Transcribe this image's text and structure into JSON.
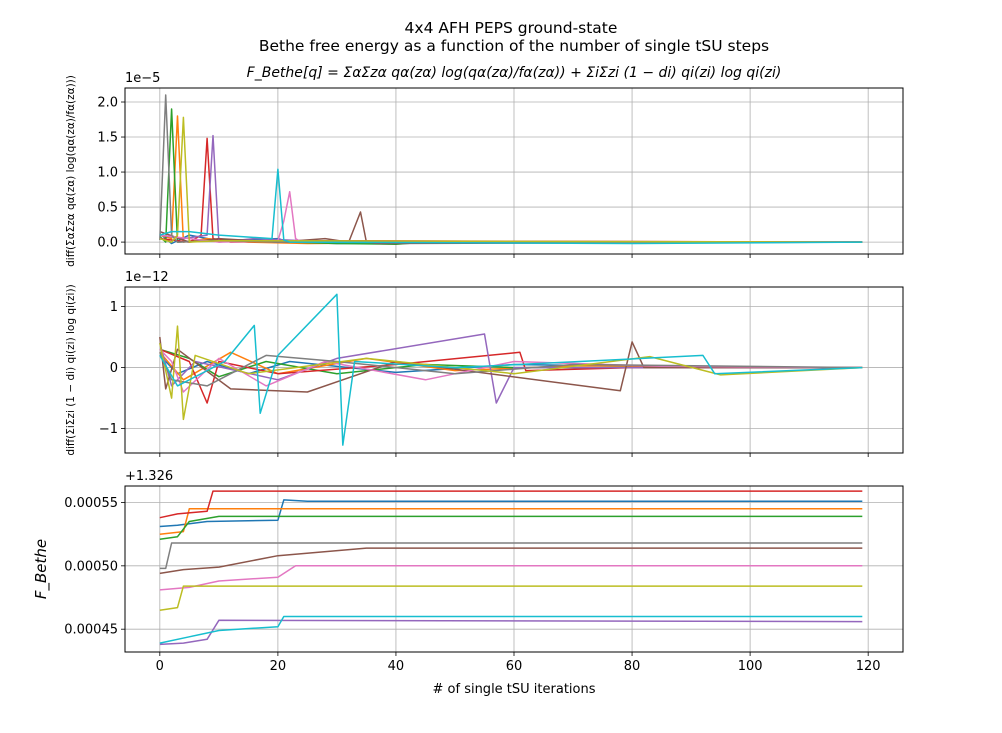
{
  "title_lines": [
    "4x4 AFH PEPS ground-state",
    "Bethe free energy as a function of the number of single tSU steps"
  ],
  "formula": "F_Bethe[q] = ΣαΣzα qα(zα) log(qα(zα)/fα(zα)) + ΣiΣzi (1 − di) qi(zi) log qi(zi)",
  "xlabel": "# of single tSU iterations",
  "palette": [
    "#1f77b4",
    "#ff7f0e",
    "#2ca02c",
    "#d62728",
    "#9467bd",
    "#8c564b",
    "#e377c2",
    "#7f7f7f",
    "#bcbd22",
    "#17becf"
  ],
  "chart_data": [
    {
      "type": "line",
      "ylabel": "diff(ΣαΣzα qα(zα) log(qα(zα)/fα(zα)))",
      "offset_label": "1e−5",
      "xlim": [
        -5.9,
        125.9
      ],
      "ylim": [
        -0.17,
        2.2
      ],
      "xticks": [
        0,
        20,
        40,
        60,
        80,
        100,
        120
      ],
      "yticks": [
        0.0,
        0.5,
        1.0,
        1.5,
        2.0
      ],
      "ytick_labels": [
        "0.0",
        "0.5",
        "1.0",
        "1.5",
        "2.0"
      ],
      "show_xtick_labels": false,
      "grid": true,
      "series": [
        {
          "points": [
            [
              0,
              0.12
            ],
            [
              2,
              -0.02
            ],
            [
              5,
              0.1
            ],
            [
              10,
              0.02
            ],
            [
              20,
              0.05
            ],
            [
              22,
              0.0
            ],
            [
              30,
              -0.02
            ],
            [
              50,
              0.0
            ],
            [
              119,
              0.0
            ]
          ]
        },
        {
          "points": [
            [
              0,
              0.1
            ],
            [
              2,
              0.05
            ],
            [
              3,
              1.8
            ],
            [
              4,
              0.0
            ],
            [
              8,
              0.05
            ],
            [
              15,
              0.0
            ],
            [
              25,
              -0.02
            ],
            [
              60,
              0.0
            ],
            [
              119,
              0.0
            ]
          ]
        },
        {
          "points": [
            [
              0,
              0.08
            ],
            [
              1,
              0.0
            ],
            [
              2,
              1.9
            ],
            [
              3,
              0.0
            ],
            [
              10,
              0.03
            ],
            [
              30,
              -0.02
            ],
            [
              40,
              -0.03
            ],
            [
              45,
              0.0
            ],
            [
              119,
              0.0
            ]
          ]
        },
        {
          "points": [
            [
              0,
              0.05
            ],
            [
              5,
              0.0
            ],
            [
              7,
              0.1
            ],
            [
              8,
              1.48
            ],
            [
              9,
              0.05
            ],
            [
              12,
              0.0
            ],
            [
              25,
              0.02
            ],
            [
              119,
              0.0
            ]
          ]
        },
        {
          "points": [
            [
              0,
              0.1
            ],
            [
              4,
              0.05
            ],
            [
              8,
              0.1
            ],
            [
              9,
              1.52
            ],
            [
              10,
              0.0
            ],
            [
              16,
              0.05
            ],
            [
              30,
              0.0
            ],
            [
              119,
              0.0
            ]
          ]
        },
        {
          "points": [
            [
              0,
              0.15
            ],
            [
              5,
              0.0
            ],
            [
              10,
              0.05
            ],
            [
              20,
              0.0
            ],
            [
              28,
              0.05
            ],
            [
              32,
              0.0
            ],
            [
              34,
              0.43
            ],
            [
              35,
              0.0
            ],
            [
              37,
              -0.02
            ],
            [
              119,
              0.0
            ]
          ]
        },
        {
          "points": [
            [
              0,
              0.1
            ],
            [
              10,
              0.0
            ],
            [
              20,
              0.02
            ],
            [
              21,
              0.3
            ],
            [
              22,
              0.72
            ],
            [
              23,
              0.05
            ],
            [
              24,
              0.0
            ],
            [
              40,
              0.0
            ],
            [
              119,
              0.0
            ]
          ]
        },
        {
          "points": [
            [
              0,
              0.03
            ],
            [
              1,
              2.1
            ],
            [
              2,
              0.1
            ],
            [
              3,
              0.0
            ],
            [
              10,
              0.02
            ],
            [
              20,
              0.0
            ],
            [
              119,
              0.0
            ]
          ]
        },
        {
          "points": [
            [
              0,
              0.05
            ],
            [
              2,
              0.0
            ],
            [
              3,
              0.1
            ],
            [
              4,
              1.78
            ],
            [
              5,
              0.0
            ],
            [
              10,
              0.02
            ],
            [
              119,
              0.0
            ]
          ]
        },
        {
          "points": [
            [
              0,
              0.1
            ],
            [
              2,
              0.15
            ],
            [
              5,
              0.15
            ],
            [
              10,
              0.1
            ],
            [
              19,
              0.05
            ],
            [
              20,
              1.04
            ],
            [
              21,
              0.03
            ],
            [
              22,
              0.0
            ],
            [
              80,
              -0.02
            ],
            [
              119,
              0.0
            ]
          ]
        }
      ]
    },
    {
      "type": "line",
      "ylabel": "diff(ΣiΣzi (1 − di) qi(zi) log qi(zi))",
      "offset_label": "1e−12",
      "xlim": [
        -5.9,
        125.9
      ],
      "ylim": [
        -1.4,
        1.32
      ],
      "xticks": [
        0,
        20,
        40,
        60,
        80,
        100,
        120
      ],
      "yticks": [
        -1,
        0,
        1
      ],
      "ytick_labels": [
        "−1",
        "0",
        "1"
      ],
      "show_xtick_labels": false,
      "grid": true,
      "series": [
        {
          "points": [
            [
              0,
              0.2
            ],
            [
              3,
              -0.1
            ],
            [
              8,
              0.1
            ],
            [
              15,
              -0.1
            ],
            [
              22,
              0.1
            ],
            [
              40,
              -0.08
            ],
            [
              60,
              0.05
            ],
            [
              80,
              0.02
            ],
            [
              100,
              0.0
            ],
            [
              119,
              0.0
            ]
          ]
        },
        {
          "points": [
            [
              0,
              0.25
            ],
            [
              4,
              -0.2
            ],
            [
              12,
              0.25
            ],
            [
              20,
              -0.1
            ],
            [
              35,
              0.15
            ],
            [
              50,
              -0.05
            ],
            [
              70,
              0.03
            ],
            [
              119,
              0.0
            ]
          ]
        },
        {
          "points": [
            [
              0,
              0.3
            ],
            [
              5,
              0.15
            ],
            [
              10,
              -0.15
            ],
            [
              18,
              0.1
            ],
            [
              30,
              -0.1
            ],
            [
              45,
              0.05
            ],
            [
              60,
              0.0
            ],
            [
              119,
              0.0
            ]
          ]
        },
        {
          "points": [
            [
              0,
              0.3
            ],
            [
              5,
              0.1
            ],
            [
              8,
              -0.58
            ],
            [
              10,
              0.1
            ],
            [
              20,
              -0.1
            ],
            [
              40,
              0.05
            ],
            [
              61,
              0.25
            ],
            [
              62,
              -0.05
            ],
            [
              80,
              0.0
            ],
            [
              119,
              0.0
            ]
          ]
        },
        {
          "points": [
            [
              0,
              0.4
            ],
            [
              2,
              -0.3
            ],
            [
              6,
              0.1
            ],
            [
              20,
              -0.2
            ],
            [
              30,
              0.15
            ],
            [
              55,
              0.55
            ],
            [
              57,
              -0.58
            ],
            [
              60,
              0.0
            ],
            [
              119,
              0.0
            ]
          ]
        },
        {
          "points": [
            [
              0,
              0.5
            ],
            [
              1,
              -0.35
            ],
            [
              3,
              0.3
            ],
            [
              12,
              -0.35
            ],
            [
              25,
              -0.4
            ],
            [
              40,
              0.1
            ],
            [
              78,
              -0.38
            ],
            [
              80,
              0.42
            ],
            [
              82,
              0.0
            ],
            [
              119,
              0.0
            ]
          ]
        },
        {
          "points": [
            [
              0,
              0.3
            ],
            [
              2,
              0.1
            ],
            [
              4,
              -0.4
            ],
            [
              10,
              0.15
            ],
            [
              18,
              -0.3
            ],
            [
              28,
              0.1
            ],
            [
              45,
              -0.2
            ],
            [
              60,
              0.1
            ],
            [
              85,
              0.02
            ],
            [
              119,
              0.0
            ]
          ]
        },
        {
          "points": [
            [
              0,
              0.25
            ],
            [
              2,
              -0.2
            ],
            [
              8,
              -0.3
            ],
            [
              18,
              0.2
            ],
            [
              30,
              0.1
            ],
            [
              50,
              -0.1
            ],
            [
              70,
              0.05
            ],
            [
              119,
              0.0
            ]
          ]
        },
        {
          "points": [
            [
              0,
              0.4
            ],
            [
              2,
              -0.5
            ],
            [
              3,
              0.68
            ],
            [
              4,
              -0.85
            ],
            [
              6,
              0.2
            ],
            [
              15,
              -0.1
            ],
            [
              35,
              0.15
            ],
            [
              60,
              -0.1
            ],
            [
              83,
              0.18
            ],
            [
              95,
              -0.12
            ],
            [
              119,
              0.0
            ]
          ]
        },
        {
          "points": [
            [
              0,
              0.2
            ],
            [
              3,
              -0.3
            ],
            [
              11,
              0.1
            ],
            [
              16,
              0.69
            ],
            [
              17,
              -0.75
            ],
            [
              20,
              0.2
            ],
            [
              30,
              1.2
            ],
            [
              31,
              -1.27
            ],
            [
              33,
              0.1
            ],
            [
              50,
              0.0
            ],
            [
              92,
              0.2
            ],
            [
              94,
              -0.1
            ],
            [
              119,
              0.0
            ]
          ]
        }
      ]
    },
    {
      "type": "line",
      "ylabel": "F_Bethe",
      "offset_label": "+1.326",
      "xlim": [
        -5.9,
        125.9
      ],
      "ylim": [
        0.000432,
        0.000563
      ],
      "xticks": [
        0,
        20,
        40,
        60,
        80,
        100,
        120
      ],
      "xtick_labels": [
        "0",
        "20",
        "40",
        "60",
        "80",
        "100",
        "120"
      ],
      "yticks": [
        0.00045,
        0.0005,
        0.00055
      ],
      "ytick_labels": [
        "0.00045",
        "0.00050",
        "0.00055"
      ],
      "show_xtick_labels": true,
      "grid": true,
      "series": [
        {
          "points": [
            [
              0,
              0.000531
            ],
            [
              3,
              0.000532
            ],
            [
              8,
              0.000535
            ],
            [
              20,
              0.000536
            ],
            [
              21,
              0.000552
            ],
            [
              25,
              0.000551
            ],
            [
              119,
              0.000551
            ]
          ]
        },
        {
          "points": [
            [
              0,
              0.000525
            ],
            [
              4,
              0.000527
            ],
            [
              5,
              0.000545
            ],
            [
              119,
              0.000545
            ]
          ]
        },
        {
          "points": [
            [
              0,
              0.000521
            ],
            [
              3,
              0.000523
            ],
            [
              5,
              0.000535
            ],
            [
              10,
              0.000539
            ],
            [
              119,
              0.000539
            ]
          ]
        },
        {
          "points": [
            [
              0,
              0.000538
            ],
            [
              3,
              0.000541
            ],
            [
              8,
              0.000543
            ],
            [
              9,
              0.000559
            ],
            [
              119,
              0.000559
            ]
          ]
        },
        {
          "points": [
            [
              0,
              0.000438
            ],
            [
              4,
              0.000439
            ],
            [
              8,
              0.000442
            ],
            [
              10,
              0.000457
            ],
            [
              119,
              0.000456
            ]
          ]
        },
        {
          "points": [
            [
              0,
              0.000494
            ],
            [
              4,
              0.000497
            ],
            [
              10,
              0.000499
            ],
            [
              20,
              0.000508
            ],
            [
              35,
              0.000514
            ],
            [
              119,
              0.000514
            ]
          ]
        },
        {
          "points": [
            [
              0,
              0.000481
            ],
            [
              5,
              0.000483
            ],
            [
              10,
              0.000488
            ],
            [
              20,
              0.000491
            ],
            [
              23,
              0.0005
            ],
            [
              119,
              0.0005
            ]
          ]
        },
        {
          "points": [
            [
              0,
              0.000498
            ],
            [
              1,
              0.000498
            ],
            [
              2,
              0.000518
            ],
            [
              119,
              0.000518
            ]
          ]
        },
        {
          "points": [
            [
              0,
              0.000465
            ],
            [
              3,
              0.000467
            ],
            [
              4,
              0.000484
            ],
            [
              119,
              0.000484
            ]
          ]
        },
        {
          "points": [
            [
              0,
              0.000439
            ],
            [
              5,
              0.000444
            ],
            [
              10,
              0.000449
            ],
            [
              20,
              0.000452
            ],
            [
              21,
              0.00046
            ],
            [
              119,
              0.00046
            ]
          ]
        }
      ]
    }
  ]
}
